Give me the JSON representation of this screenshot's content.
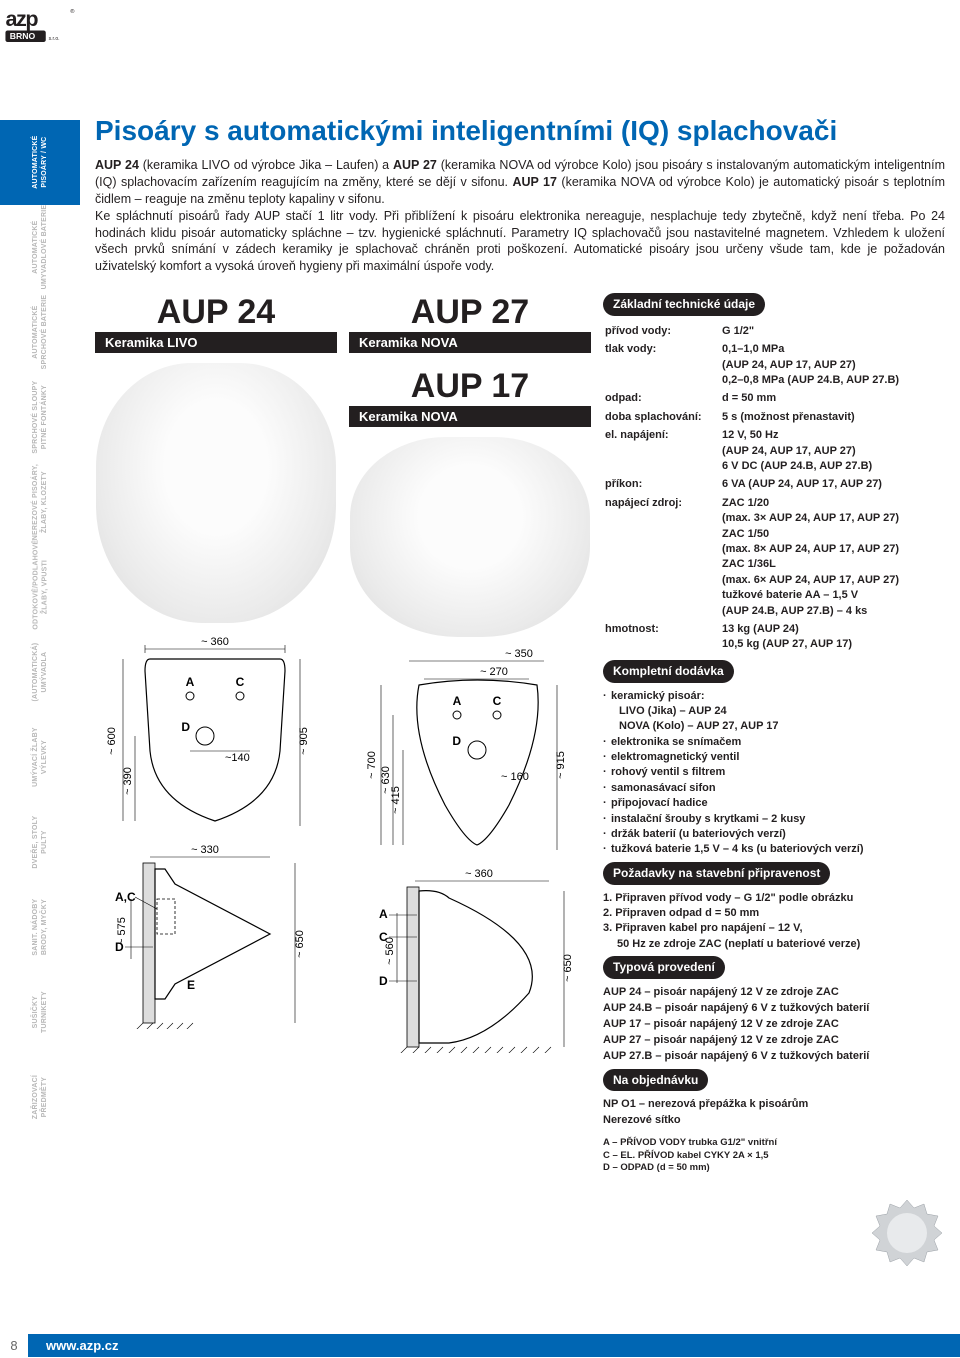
{
  "logo": {
    "brand_top": "azp",
    "brand_bot": "BRNO",
    "suffix": "s.r.o.",
    "reg": "®"
  },
  "sidebar": {
    "tabs": [
      {
        "label": "AUTOMATICKÉ\nPISOÁRY / WC",
        "active": true
      },
      {
        "label": "AUTOMATICKÉ\nUMYVADLOVÉ BATERIE",
        "active": false
      },
      {
        "label": "AUTOMATICKÉ\nSPRCHOVÉ BATERIE",
        "active": false
      },
      {
        "label": "SPRCHOVÉ SLOUPY\nPITNÉ FONTÁNKY",
        "active": false
      },
      {
        "label": "NEREZOVÉ PISOÁRY,\nŽLABY, KLOZETY",
        "active": false
      },
      {
        "label": "ODTOKOVÉ/PODLAHOVÉ\nŽLABY, VPUSTI",
        "active": false
      },
      {
        "label": "(AUTOMATICKÁ)\nUMÝVADLA",
        "active": false
      },
      {
        "label": "UMÝVACÍ ŽLABY\nVÝLEVKY",
        "active": false
      },
      {
        "label": "DVEŘE, STOLY\nPULTY",
        "active": false
      },
      {
        "label": "SANIT. NÁDOBY\nBRODY, MYČKY",
        "active": false
      },
      {
        "label": "SUŠIČKY\nTURNIKETY",
        "active": false
      },
      {
        "label": "ZAŘIZOVACÍ\nPŘEDMĚTY",
        "active": false
      }
    ]
  },
  "title": "Pisoáry s automatickými inteligentními (IQ) splachovači",
  "intro_html": "<b>AUP 24</b> (keramika LIVO od výrobce Jika – Laufen) a <b>AUP 27</b> (keramika NOVA od výrobce Kolo) jsou pisoáry s instalovaným automatickým inteligentním (IQ) splachovacím zařízením reagujícím na změny, které se dějí v sifonu. <b>AUP 17</b> (keramika NOVA od výrobce Kolo) je automatický pisoár s teplotním čidlem – reaguje na změnu teploty kapaliny v sifonu.<br>Ke spláchnutí pisoárů řady AUP stačí 1 litr vody. Při přiblížení k pisoáru elektronika nereaguje, nesplachuje tedy zbytečně, když není třeba. Po 24 hodinách klidu pisoár automaticky spláchne – tzv. hygienické spláchnutí. Parametry IQ splachovačů jsou nastavitelné magnetem. Vzhledem k uložení všech prvků snímání v zádech keramiky je splachovač chráněn proti poškození. Automatické pisoáry jsou určeny všude tam, kde je požadován uživatelský komfort a vysoká úroveň hygieny při maximální úspoře vody.",
  "products": {
    "p1": {
      "name": "AUP 24",
      "sub": "Keramika LIVO"
    },
    "p2": {
      "name": "AUP 27",
      "sub": "Keramika NOVA"
    },
    "p3": {
      "name": "AUP 17",
      "sub": "Keramika NOVA"
    }
  },
  "diagrams": {
    "a_top": {
      "w": "~ 360",
      "h1": "~ 600",
      "h2": "~ 390",
      "h3": "~ 905",
      "w2": "~140",
      "labelA": "A",
      "labelC": "C",
      "labelD": "D"
    },
    "a_side": {
      "w": "~ 330",
      "h1": "~ 575",
      "h2": "~ 650",
      "labelAC": "A,C",
      "labelD": "D",
      "labelE": "E"
    },
    "b_top": {
      "w1": "~ 350",
      "w2": "~ 270",
      "w3": "~ 160",
      "h1": "~ 700",
      "h2": "~ 630",
      "h3": "~ 415",
      "h4": "~ 915",
      "labelA": "A",
      "labelC": "C",
      "labelD": "D"
    },
    "b_side": {
      "w": "~ 360",
      "h1": "~ 560",
      "h2": "~ 650",
      "labelA": "A",
      "labelC": "C",
      "labelD": "D"
    }
  },
  "sections": {
    "specs_head": "Základní technické údaje",
    "delivery_head": "Kompletní dodávka",
    "reqs_head": "Požadavky na stavební připravenost",
    "variants_head": "Typová provedení",
    "order_head": "Na objednávku"
  },
  "specs": [
    {
      "k": "přívod vody:",
      "v": "G 1/2\""
    },
    {
      "k": "tlak vody:",
      "v": "0,1–1,0 MPa\n(AUP 24, AUP 17, AUP 27)\n0,2–0,8 MPa (AUP 24.B, AUP 27.B)"
    },
    {
      "k": "odpad:",
      "v": "d = 50 mm"
    },
    {
      "k": "doba splachování:",
      "v": "5 s (možnost přenastavit)"
    },
    {
      "k": "el. napájení:",
      "v": "12 V, 50 Hz\n(AUP 24, AUP 17, AUP 27)\n6 V DC (AUP 24.B, AUP 27.B)"
    },
    {
      "k": "příkon:",
      "v": "6 VA (AUP 24, AUP 17, AUP 27)"
    },
    {
      "k": "napájecí zdroj:",
      "v": "ZAC 1/20\n(max. 3× AUP 24, AUP 17, AUP 27)\nZAC 1/50\n(max. 8× AUP 24, AUP 17, AUP 27)\nZAC 1/36L\n(max. 6× AUP 24, AUP 17, AUP 27)\ntužkové baterie AA – 1,5 V\n(AUP 24.B, AUP 27.B) – 4 ks"
    },
    {
      "k": "hmotnost:",
      "v": "13 kg (AUP 24)\n10,5 kg (AUP 27, AUP 17)"
    }
  ],
  "delivery": [
    "keramický pisoár:",
    "  LIVO (Jika) – AUP 24",
    "  NOVA (Kolo) – AUP 27, AUP 17",
    "elektronika se snímačem",
    "elektromagnetický ventil",
    "rohový ventil s filtrem",
    "samonasávací sifon",
    "připojovací hadice",
    "instalační šrouby s krytkami – 2 kusy",
    "držák baterií (u bateriových verzí)",
    "tužková baterie 1,5 V – 4  ks (u bateriových verzí)"
  ],
  "reqs": [
    "1. Připraven přívod vody – G 1/2\" podle obrázku",
    "2. Připraven odpad d = 50 mm",
    "3. Připraven kabel pro napájení – 12 V,",
    "   50 Hz ze zdroje ZAC (neplatí u bateriové verze)"
  ],
  "variants": [
    "AUP 24 – pisoár napájený 12 V ze zdroje ZAC",
    "AUP 24.B – pisoár napájený 6 V z tužkových baterií",
    "AUP 17 – pisoár napájený 12 V ze zdroje ZAC",
    "AUP 27 – pisoár napájený 12 V ze zdroje ZAC",
    "AUP 27.B – pisoár napájený 6 V z tužkových baterií"
  ],
  "order": [
    "NP O1 – nerezová přepážka k pisoárům",
    "Nerezové sítko"
  ],
  "legend": [
    "A – PŘÍVOD VODY trubka G1/2\" vnitřní",
    "C – EL. PŘÍVOD kabel CYKY 2A × 1,5",
    "D – ODPAD (d = 50 mm)"
  ],
  "footer": {
    "pagenum": "8",
    "url": "www.azp.cz"
  },
  "colors": {
    "brand": "#0066b3",
    "text": "#231f20",
    "muted": "#b8b8b8"
  }
}
